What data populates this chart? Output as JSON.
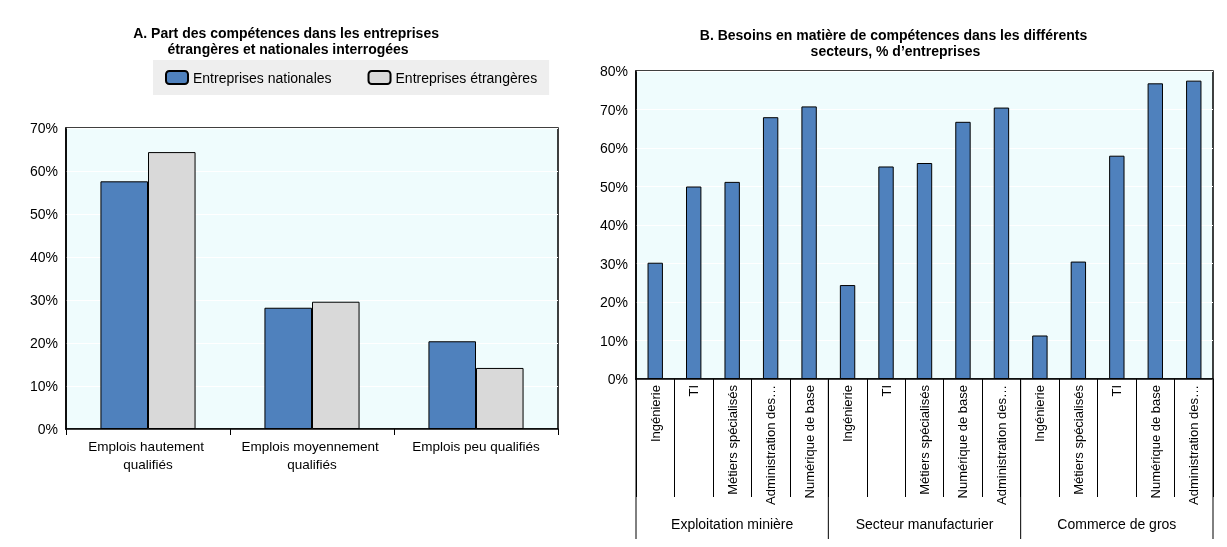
{
  "chart_data": [
    {
      "type": "bar",
      "title": "A. Part des compétences dans les entreprises étrangères et nationales interrogées",
      "categories": [
        "Emplois hautement qualifiés",
        "Emplois moyennement qualifiés",
        "Emplois peu qualifiés"
      ],
      "series": [
        {
          "name": "Entreprises nationales",
          "color": "#4f81bd",
          "values": [
            57.6,
            28.2,
            20.4
          ]
        },
        {
          "name": "Entreprises étrangères",
          "color": "#d9d9d9",
          "values": [
            64.4,
            29.6,
            14.2
          ]
        }
      ],
      "ylim": [
        0,
        70
      ],
      "yticks": [
        {
          "value": 0,
          "label": "0%"
        },
        {
          "value": 10,
          "label": "10%"
        },
        {
          "value": 20,
          "label": "20%"
        },
        {
          "value": 30,
          "label": "30%"
        },
        {
          "value": 40,
          "label": "40%"
        },
        {
          "value": 50,
          "label": "50%"
        },
        {
          "value": 60,
          "label": "60%"
        },
        {
          "value": 70,
          "label": "70%"
        }
      ],
      "grid": "y",
      "legend": "top"
    },
    {
      "type": "bar",
      "title": "B. Besoins en matière de compétences dans les différents secteurs, % d’entreprises",
      "categories": [
        "Ingénierie",
        "TI",
        "Métiers spécialisés",
        "Administration des…",
        "Numérique de base",
        "Ingénierie",
        "TI",
        "Métiers spécialisés",
        "Numérique de base",
        "Administration des…",
        "Ingénierie",
        "Métiers spécialisés",
        "TI",
        "Numérique de base",
        "Administration des…"
      ],
      "series": [
        {
          "color": "#4f81bd",
          "values": [
            30.2,
            50,
            51.2,
            68,
            70.8,
            24.4,
            55.2,
            56.1,
            66.8,
            70.5,
            11.3,
            30.5,
            58,
            76.8,
            77.5
          ]
        }
      ],
      "annotations": [
        "Exploitation minière",
        "Secteur manufacturier",
        "Commerce de gros"
      ],
      "ylim": [
        0,
        80
      ],
      "yticks": [
        {
          "value": 0,
          "label": "0%"
        },
        {
          "value": 10,
          "label": "10%"
        },
        {
          "value": 20,
          "label": "20%"
        },
        {
          "value": 30,
          "label": "30%"
        },
        {
          "value": 40,
          "label": "40%"
        },
        {
          "value": 50,
          "label": "50%"
        },
        {
          "value": 60,
          "label": "60%"
        },
        {
          "value": 70,
          "label": "70%"
        },
        {
          "value": 80,
          "label": "80%"
        }
      ],
      "grid": "y"
    }
  ]
}
